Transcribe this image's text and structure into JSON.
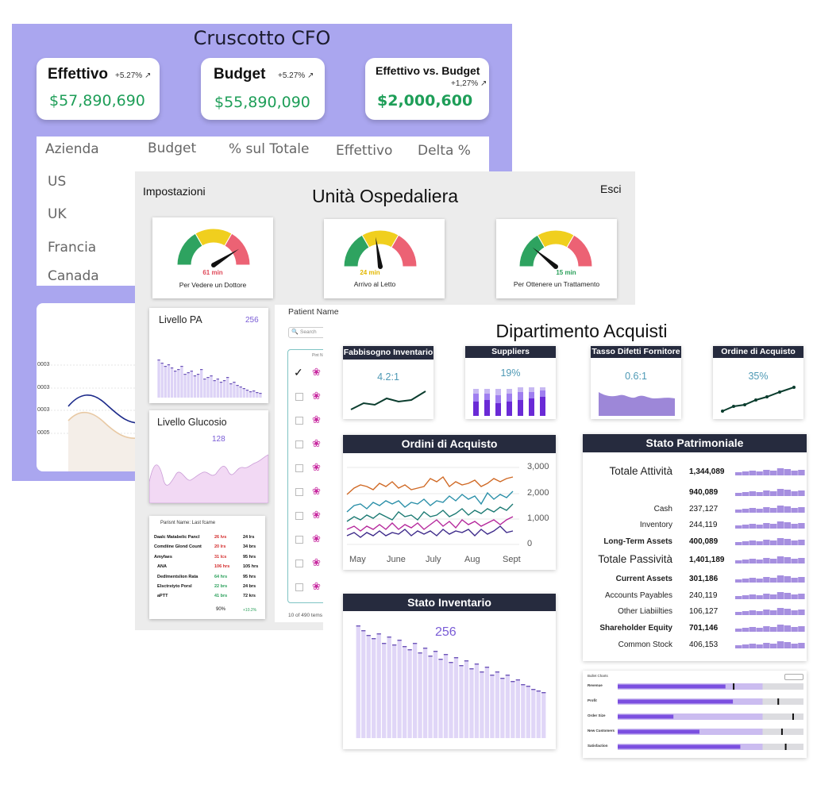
{
  "cfo": {
    "title": "Cruscotto CFO",
    "kpis": [
      {
        "title": "Effettivo",
        "change": "+5.27%",
        "value": "$57,890,690"
      },
      {
        "title": "Budget",
        "change": "+5.27%",
        "value": "$55,890,090"
      },
      {
        "title": "Effettivo vs. Budget",
        "change": "+1,27%",
        "value": "$2,000,600"
      }
    ],
    "table": {
      "headers": [
        "Azienda",
        "Budget",
        "% sul Totale",
        "Effettivo",
        "Delta %"
      ],
      "rows": [
        "US",
        "UK",
        "Francia",
        "Canada"
      ]
    },
    "chart": {
      "ticks": [
        "0003",
        "0003",
        "0003",
        "0005"
      ]
    }
  },
  "hospital": {
    "settings": "Impostazioni",
    "title": "Unità Ospedaliera",
    "exit": "Esci",
    "gauges": [
      {
        "value": "61 min",
        "label": "Per Vedere un Dottore",
        "color": "#e04a5a",
        "level": 0.82
      },
      {
        "value": "24 min",
        "label": "Arrivo al Letto",
        "color": "#e3b800",
        "level": 0.45
      },
      {
        "value": "15 min",
        "label": "Per Ottenere un Trattamento",
        "color": "#2aa05a",
        "level": 0.22
      }
    ],
    "pa": {
      "title": "Livello PA",
      "value": "256"
    },
    "glucose": {
      "title": "Livello Glucosio",
      "value": "128"
    },
    "labs": {
      "header": "Parisnt Name: Last fcame",
      "rows": [
        {
          "name": "Daalc Matabelic Pancl",
          "v1": "26 lvs",
          "v2": "24 lrs",
          "c": "#d32b2b"
        },
        {
          "name": "Comdiine Glond Count",
          "v1": "20 lrs",
          "v2": "34 brs",
          "c": "#d32b2b"
        },
        {
          "name": "Amyfaes",
          "v1": "31 lcs",
          "v2": "95 hrs",
          "c": "#d32b2b"
        },
        {
          "name": "ANA",
          "v1": "106 hrs",
          "v2": "105 hrs",
          "c": "#d32b2b"
        },
        {
          "name": "Dedlmentslion Rata",
          "v1": "64 hrs",
          "v2": "95 hrs",
          "c": "#2aa05a"
        },
        {
          "name": "Elsctrstyto Porsl",
          "v1": "22 brs",
          "v2": "24 brs",
          "c": "#2aa05a"
        },
        {
          "name": "aPTT",
          "v1": "41 brs",
          "v2": "72 krs",
          "c": "#2aa05a"
        }
      ],
      "footer_a": "90%",
      "footer_b": "+10.2%"
    },
    "patients": {
      "header": "Patient Name",
      "search": "Search",
      "col": "Pint N",
      "footer": "10 of 490 tems"
    }
  },
  "acquisti": {
    "title": "Dipartimento Acquisti",
    "small": [
      {
        "title": "Fabbisogno Inventario",
        "value": "4.2:1"
      },
      {
        "title": "Suppliers",
        "value": "19%"
      },
      {
        "title": "Tasso Difetti Fornitore",
        "value": "0.6:1"
      },
      {
        "title": "Ordine di Acquisto",
        "value": "35%"
      }
    ],
    "orders": {
      "title": "Ordini di Acquisto",
      "yticks": [
        "3,000",
        "2,000",
        "1,000",
        "0"
      ],
      "xticks": [
        "May",
        "June",
        "July",
        "Aug",
        "Sept"
      ]
    },
    "inventory": {
      "title": "Stato Inventario",
      "value": "256"
    },
    "balance": {
      "title": "Stato Patrimoniale",
      "rows": [
        {
          "label": "Totale Attività",
          "value": "1,344,089",
          "style": "big"
        },
        {
          "label": "",
          "value": "940,089",
          "style": "bold"
        },
        {
          "label": "Cash",
          "value": "237,127",
          "style": "normal"
        },
        {
          "label": "Inventory",
          "value": "244,119",
          "style": "normal"
        },
        {
          "label": "Long-Term Assets",
          "value": "400,089",
          "style": "bold"
        },
        {
          "label": "Totale Passività",
          "value": "1,401,189",
          "style": "big"
        },
        {
          "label": "Current Assets",
          "value": "301,186",
          "style": "bold"
        },
        {
          "label": "Accounts Payables",
          "value": "240,119",
          "style": "normal"
        },
        {
          "label": "Other Liabiilties",
          "value": "106,127",
          "style": "normal"
        },
        {
          "label": "Shareholder Equity",
          "value": "701,146",
          "style": "bold"
        },
        {
          "label": "Common Stock",
          "value": "406,153",
          "style": "normal"
        }
      ]
    },
    "bullet": {
      "title": "Bullet Charts",
      "rows": [
        "Revenue",
        "Profit",
        "Order Size",
        "New Customers",
        "Satisfaction"
      ]
    }
  }
}
